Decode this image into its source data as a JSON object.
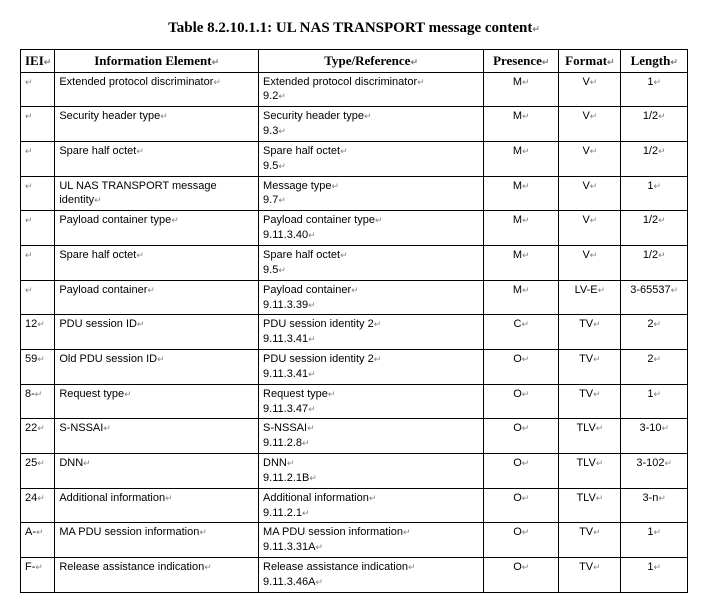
{
  "title": "Table 8.2.10.1.1: UL NAS TRANSPORT message content",
  "headers": {
    "iei": "IEI",
    "ie": "Information Element",
    "type": "Type/Reference",
    "presence": "Presence",
    "format": "Format",
    "length": "Length"
  },
  "rows": [
    {
      "iei": "",
      "ie": "Extended  protocol  discriminator",
      "typeL1": "Extended  protocol  discriminator",
      "typeL2": "9.2",
      "presence": "M",
      "format": "V",
      "length": "1"
    },
    {
      "iei": "",
      "ie": "Security header type",
      "typeL1": "Security header type",
      "typeL2": "9.3",
      "presence": "M",
      "format": "V",
      "length": "1/2"
    },
    {
      "iei": "",
      "ie": "Spare half octet",
      "typeL1": "Spare half octet",
      "typeL2": "9.5",
      "presence": "M",
      "format": "V",
      "length": "1/2"
    },
    {
      "iei": "",
      "ie": "UL NAS TRANSPORT message identity",
      "typeL1": "Message type",
      "typeL2": "9.7",
      "presence": "M",
      "format": "V",
      "length": "1"
    },
    {
      "iei": "",
      "ie": "Payload container type",
      "typeL1": "Payload container type",
      "typeL2": "9.11.3.40",
      "presence": "M",
      "format": "V",
      "length": "1/2"
    },
    {
      "iei": "",
      "ie": "Spare half octet",
      "typeL1": "Spare half octet",
      "typeL2": "9.5",
      "presence": "M",
      "format": "V",
      "length": "1/2"
    },
    {
      "iei": "",
      "ie": "Payload container",
      "typeL1": "Payload container",
      "typeL2": "9.11.3.39",
      "presence": "M",
      "format": "LV-E",
      "length": "3-65537"
    },
    {
      "iei": "12",
      "ie": "PDU session ID",
      "typeL1": "PDU session identity 2",
      "typeL2": "9.11.3.41",
      "presence": "C",
      "format": "TV",
      "length": "2"
    },
    {
      "iei": "59",
      "ie": "Old PDU session ID",
      "typeL1": "PDU session identity 2",
      "typeL2": "9.11.3.41",
      "presence": "O",
      "format": "TV",
      "length": "2"
    },
    {
      "iei": "8-",
      "ie": "Request type",
      "typeL1": "Request type",
      "typeL2": "9.11.3.47",
      "presence": "O",
      "format": "TV",
      "length": "1"
    },
    {
      "iei": "22",
      "ie": "S-NSSAI",
      "typeL1": "S-NSSAI",
      "typeL2": "9.11.2.8",
      "presence": "O",
      "format": "TLV",
      "length": "3-10"
    },
    {
      "iei": "25",
      "ie": "DNN",
      "typeL1": "DNN",
      "typeL2": "9.11.2.1B",
      "presence": "O",
      "format": "TLV",
      "length": "3-102"
    },
    {
      "iei": "24",
      "ie": "Additional information",
      "typeL1": "Additional information",
      "typeL2": "9.11.2.1",
      "presence": "O",
      "format": "TLV",
      "length": "3-n"
    },
    {
      "iei": "A-",
      "ie": "MA PDU session information",
      "typeL1": "MA PDU session information",
      "typeL2": "9.11.3.31A",
      "presence": "O",
      "format": "TV",
      "length": "1"
    },
    {
      "iei": "F-",
      "ie": "Release assistance indication",
      "typeL1": "Release assistance indication",
      "typeL2": "9.11.3.46A",
      "presence": "O",
      "format": "TV",
      "length": "1"
    }
  ]
}
